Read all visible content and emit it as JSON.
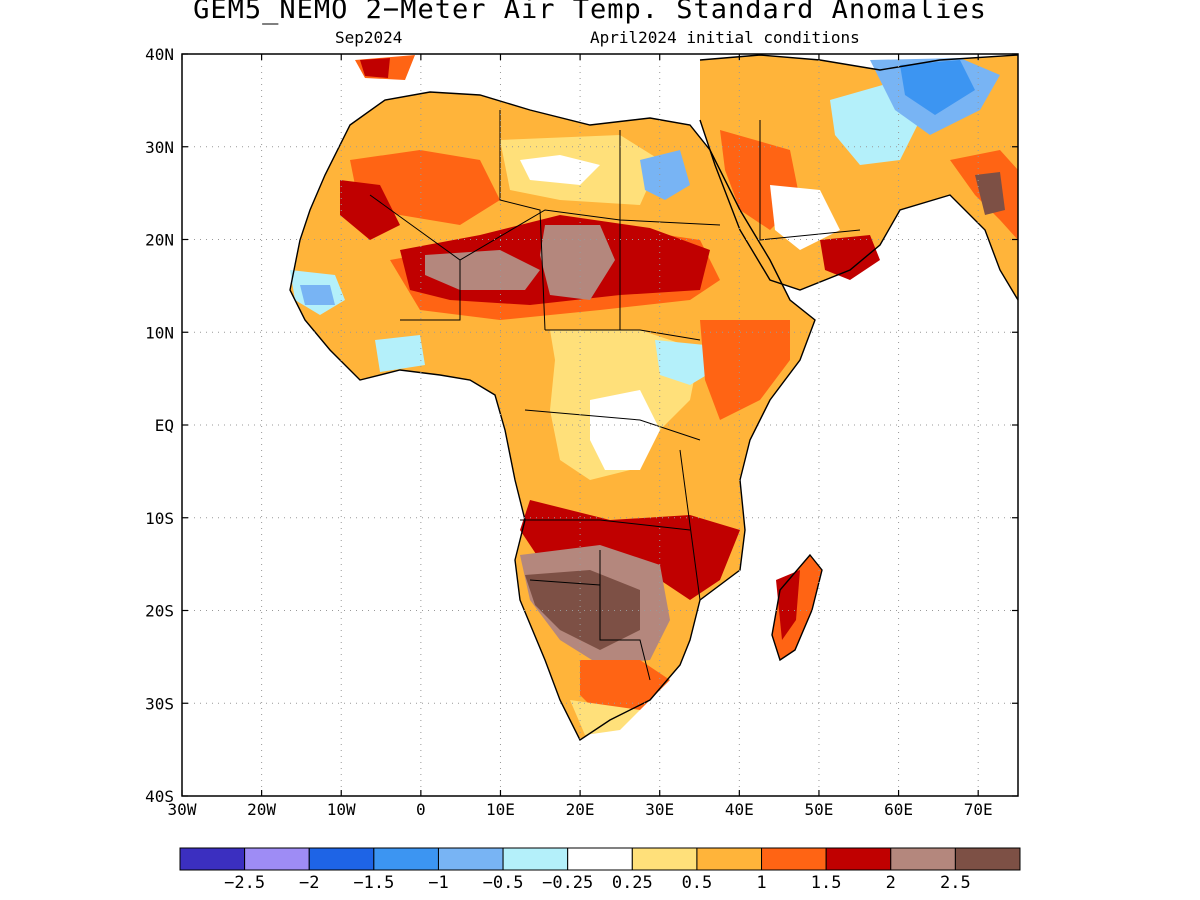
{
  "title": "GEM5_NEMO 2−Meter Air Temp. Standard Anomalies",
  "subtitle_left": "Sep2024",
  "subtitle_right": "April2024 initial conditions",
  "map": {
    "lon_range": [
      -30,
      75
    ],
    "lat_range": [
      -40,
      40
    ],
    "lon_ticks": [
      {
        "v": -30,
        "label": "30W"
      },
      {
        "v": -20,
        "label": "20W"
      },
      {
        "v": -10,
        "label": "10W"
      },
      {
        "v": 0,
        "label": "0"
      },
      {
        "v": 10,
        "label": "10E"
      },
      {
        "v": 20,
        "label": "20E"
      },
      {
        "v": 30,
        "label": "30E"
      },
      {
        "v": 40,
        "label": "40E"
      },
      {
        "v": 50,
        "label": "50E"
      },
      {
        "v": 60,
        "label": "60E"
      },
      {
        "v": 70,
        "label": "70E"
      }
    ],
    "lat_ticks": [
      {
        "v": 40,
        "label": "40N"
      },
      {
        "v": 30,
        "label": "30N"
      },
      {
        "v": 20,
        "label": "20N"
      },
      {
        "v": 10,
        "label": "10N"
      },
      {
        "v": 0,
        "label": "EQ"
      },
      {
        "v": -10,
        "label": "10S"
      },
      {
        "v": -20,
        "label": "20S"
      },
      {
        "v": -30,
        "label": "30S"
      },
      {
        "v": -40,
        "label": "40S"
      }
    ],
    "grid": "dotted"
  },
  "colorbar": {
    "colors": [
      "#3b2fc0",
      "#9e8cf5",
      "#1e64e6",
      "#3c95f2",
      "#78b4f4",
      "#b4f0fa",
      "#ffffff",
      "#ffe07a",
      "#ffb43a",
      "#ff6414",
      "#c00000",
      "#b4877d",
      "#7d5045"
    ],
    "labels": [
      "−2.5",
      "−2",
      "−1.5",
      "−1",
      "−0.5",
      "−0.25",
      "0.25",
      "0.5",
      "1",
      "1.5",
      "2",
      "2.5"
    ]
  }
}
